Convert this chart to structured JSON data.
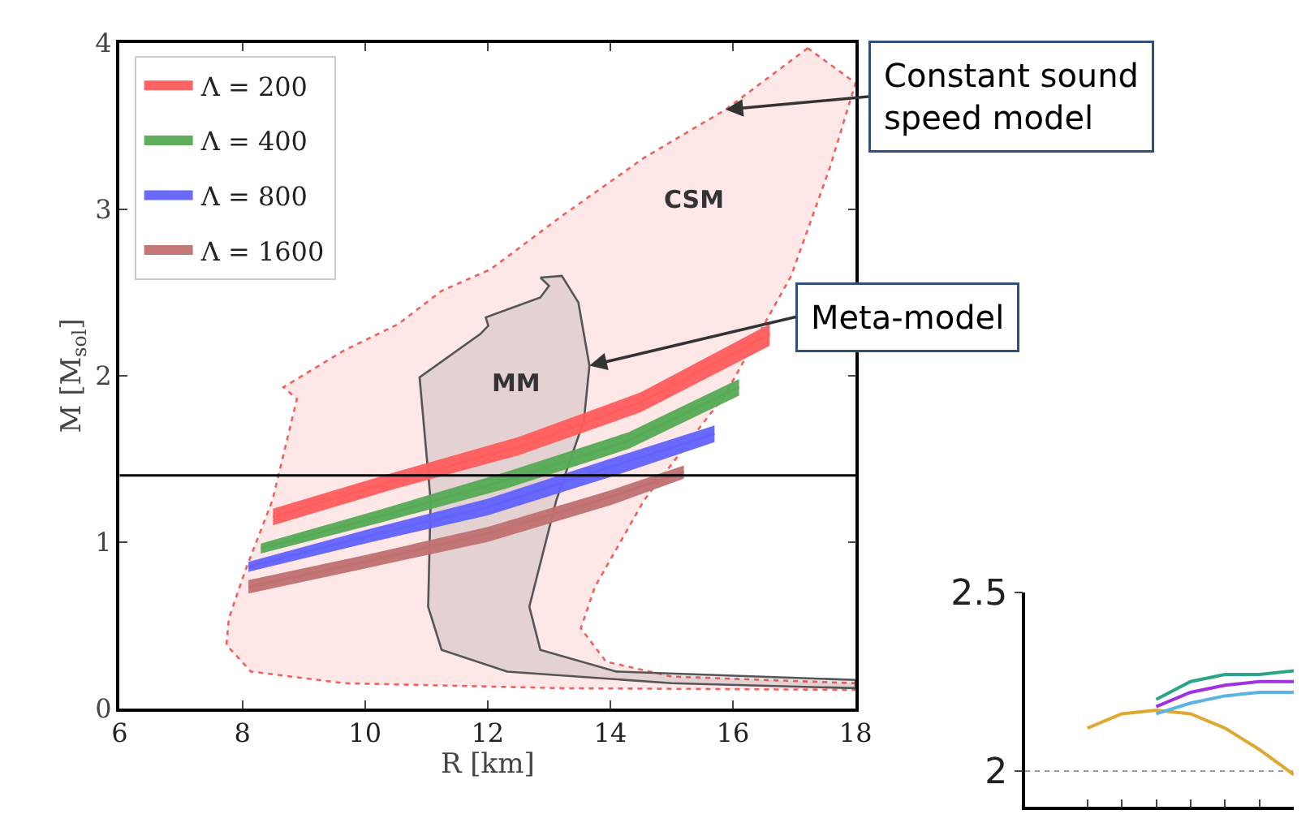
{
  "chart_data": [
    {
      "type": "line",
      "xlabel": "R [km]",
      "ylabel": "M [M$_{sol}$]",
      "xlim": [
        6,
        18
      ],
      "ylim": [
        0,
        4
      ],
      "xticks": [
        6,
        8,
        10,
        12,
        14,
        16,
        18
      ],
      "yticks": [
        0,
        1,
        2,
        3,
        4
      ],
      "grid": false,
      "legend": "top left",
      "marker": "none",
      "series": [
        {
          "type": "area",
          "color": "#f06060",
          "line_style": "dotted",
          "x": [
            17.22,
            15.88,
            14.55,
            13.21,
            12.05,
            11.25,
            10.54,
            9.65,
            8.67,
            8.89,
            8.49,
            8.05,
            7.78,
            7.74,
            8.14,
            9.65,
            13.21,
            18,
            18,
            15,
            13.93,
            13.52,
            13.75,
            14.55,
            15.88,
            16.95,
            17.58,
            18,
            17.22
          ],
          "values": [
            3.97,
            3.6,
            3.31,
            2.96,
            2.64,
            2.51,
            2.31,
            2.15,
            1.93,
            1.86,
            1.25,
            0.83,
            0.54,
            0.38,
            0.22,
            0.15,
            0.12,
            0.11,
            0.15,
            0.19,
            0.28,
            0.48,
            0.73,
            1.25,
            1.89,
            2.6,
            3.25,
            3.76,
            3.97
          ]
        },
        {
          "type": "area",
          "color": "#555555",
          "line_style": "solid",
          "x": [
            12.86,
            13.21,
            13.48,
            13.66,
            13.57,
            13.12,
            12.68,
            12.86,
            14.1,
            18,
            18,
            15,
            12.32,
            11.25,
            11.03,
            11.07,
            10.89,
            11.88,
            12.01,
            11.97,
            12.86,
            13.0,
            12.86
          ],
          "values": [
            2.59,
            2.6,
            2.44,
            2.06,
            1.73,
            1.25,
            0.61,
            0.35,
            0.22,
            0.17,
            0.12,
            0.15,
            0.22,
            0.35,
            0.61,
            1.25,
            1.99,
            2.25,
            2.3,
            2.35,
            2.47,
            2.54,
            2.59
          ]
        },
        {
          "name": "Λ = 200",
          "color": "#ff5c5c",
          "x": [
            8.5,
            10.5,
            12.5,
            14.5,
            16.6
          ],
          "values": [
            1.15,
            1.37,
            1.57,
            1.84,
            2.25
          ],
          "lower": [
            1.1,
            1.32,
            1.52,
            1.78,
            2.18
          ],
          "upper": [
            1.2,
            1.42,
            1.63,
            1.9,
            2.31
          ]
        },
        {
          "name": "Λ = 400",
          "color": "#55aa55",
          "x": [
            8.3,
            10.3,
            12.3,
            14.3,
            16.1
          ],
          "values": [
            0.96,
            1.16,
            1.37,
            1.61,
            1.93
          ],
          "lower": [
            0.93,
            1.12,
            1.32,
            1.56,
            1.88
          ],
          "upper": [
            0.99,
            1.2,
            1.42,
            1.66,
            1.98
          ]
        },
        {
          "name": "Λ = 800",
          "color": "#6262ff",
          "x": [
            8.1,
            10,
            12,
            14,
            15.7
          ],
          "values": [
            0.85,
            1.03,
            1.21,
            1.45,
            1.65
          ],
          "lower": [
            0.82,
            0.99,
            1.16,
            1.39,
            1.6
          ],
          "upper": [
            0.88,
            1.07,
            1.26,
            1.5,
            1.7
          ]
        },
        {
          "name": "Λ = 1600",
          "color": "#c07070",
          "x": [
            8.1,
            10,
            12,
            14,
            15.2
          ],
          "values": [
            0.73,
            0.88,
            1.05,
            1.27,
            1.42
          ],
          "lower": [
            0.69,
            0.84,
            1.0,
            1.22,
            1.38
          ],
          "upper": [
            0.77,
            0.92,
            1.09,
            1.31,
            1.46
          ]
        }
      ],
      "ref_lines": [
        {
          "axis": "y",
          "value": 1.4,
          "color": "#000000"
        }
      ],
      "annotations": [
        "CSM",
        "MM",
        {
          "text": "Constant sound\nspeed model",
          "x": 15.88,
          "y": 3.6
        },
        {
          "text": "Meta-model",
          "x": 13.66,
          "y": 2.06
        }
      ]
    },
    {
      "type": "line",
      "categories": [
        null,
        null,
        null,
        null,
        null,
        null,
        null
      ],
      "ylim": [
        1.9,
        2.5
      ],
      "yticks": [
        2,
        2.5
      ],
      "tick_labels": "y",
      "grid": "y",
      "marker": "none",
      "series": [
        {
          "color": "#e0a830",
          "values": [
            2.12,
            2.16,
            2.17,
            2.16,
            2.12,
            2.06,
            1.99
          ]
        },
        {
          "color": "#2aa58a",
          "values": [
            null,
            null,
            2.2,
            2.25,
            2.27,
            2.27,
            2.28
          ]
        },
        {
          "color": "#a030e0",
          "values": [
            null,
            null,
            2.18,
            2.22,
            2.24,
            2.25,
            2.25
          ]
        },
        {
          "color": "#5ab4e0",
          "values": [
            null,
            null,
            2.16,
            2.19,
            2.21,
            2.22,
            2.22
          ]
        }
      ]
    }
  ]
}
